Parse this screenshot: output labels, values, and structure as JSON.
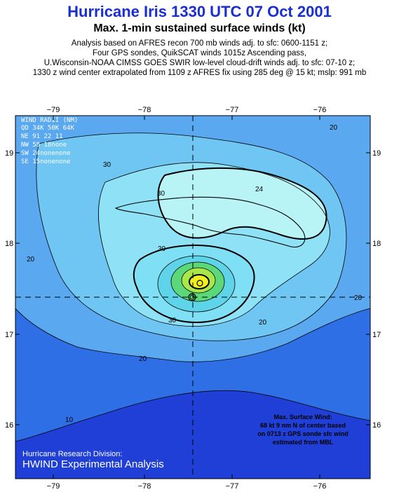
{
  "header": {
    "title": "Hurricane Iris 1330 UTC 07 Oct 2001",
    "subtitle": "Max. 1-min sustained surface winds (kt)",
    "notes": [
      "Analysis based on AFRES recon 700 mb winds adj. to sfc: 0600-1151 z;",
      "Four GPS sondes, QuikSCAT winds 1015z Ascending pass,",
      "U.Wisconsin-NOAA CIMSS GOES SWIR low-level cloud-drift winds adj. to sfc: 07-10 z;",
      "1330 z wind center extrapolated from 1109 z AFRES fix using 285 deg @ 15 kt; mslp: 991 mb"
    ]
  },
  "map": {
    "lon_ticks": [
      "−79",
      "−78",
      "−77",
      "−76"
    ],
    "lat_ticks": [
      "19",
      "18",
      "17",
      "16"
    ],
    "contour_labels": [
      "30",
      "30",
      "30",
      "30",
      "20",
      "20",
      "20",
      "20",
      "20",
      "10",
      "24"
    ]
  },
  "wind_radii": {
    "title": "WIND RADII (NM)",
    "header": "QD  34K 50K 64K",
    "rows": [
      "NE  91  22  11",
      "NW  58  18none",
      "SW  24nonenone",
      "SE  15nonenone"
    ]
  },
  "max_wind": [
    "Max. Surface Wind:",
    "68 kt 9 nm N of center based",
    "on  0713 z GPS sonde sfc wind",
    "estimated from MBL"
  ],
  "credits": {
    "line1": "Hurricane Research Division:",
    "line2": "HWIND Experimental Analysis"
  },
  "colors": {
    "title": "#1a2fd0",
    "deep_blue": "#1f3fd6",
    "blue": "#2f6fe6",
    "light_blue": "#5aa8f0",
    "cyan": "#7fe0f5",
    "pale_cyan": "#b8f4f6",
    "green": "#5ad87a",
    "yellow": "#f0f020"
  }
}
